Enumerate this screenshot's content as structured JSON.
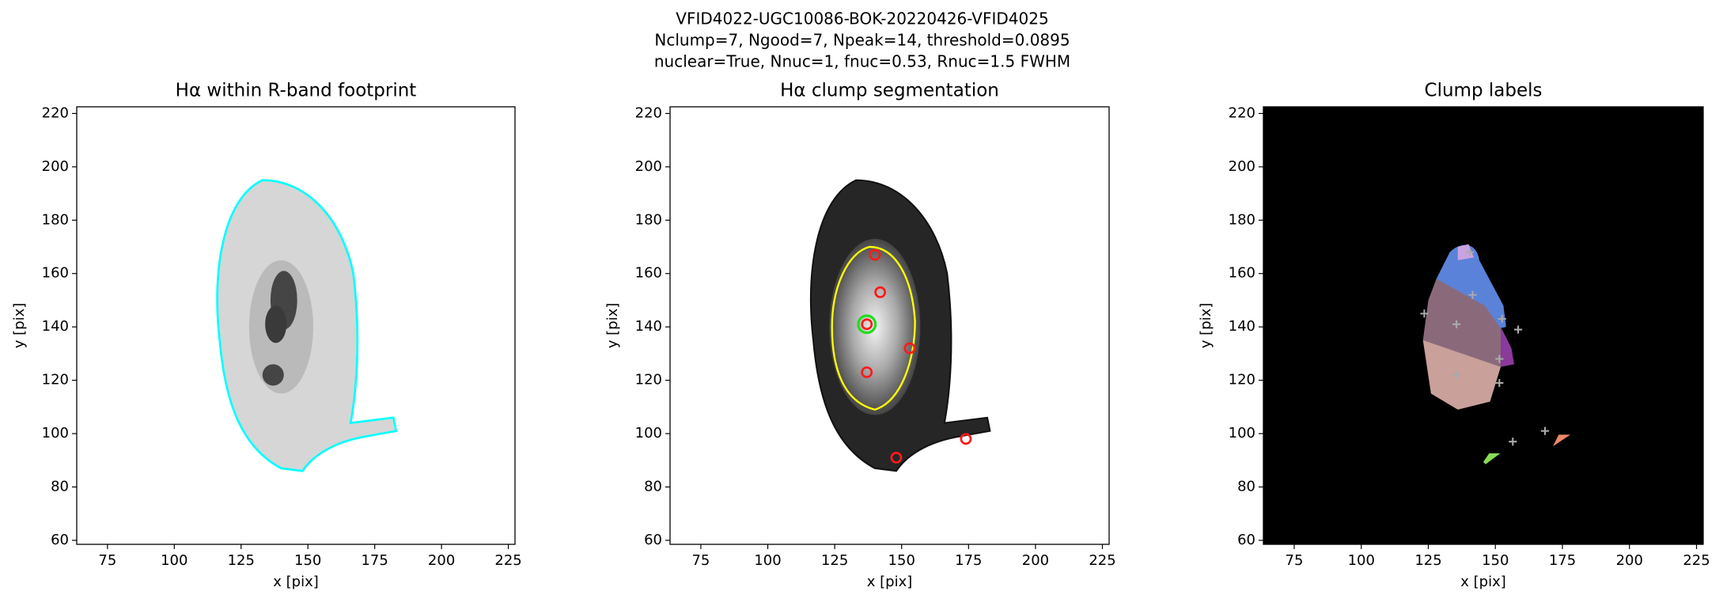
{
  "figure": {
    "title_lines": [
      "VFID4022-UGC10086-BOK-20220426-VFID4025",
      "Nclump=7, Ngood=7, Npeak=14, threshold=0.0895",
      "nuclear=True, Nnuc=1, fnuc=0.53, Rnuc=1.5 FWHM"
    ]
  },
  "chart_data": [
    {
      "type": "image",
      "title": "Hα within R-band footprint",
      "xlabel": "x [pix]",
      "ylabel": "y [pix]",
      "xlim": [
        63.5,
        227.5
      ],
      "ylim": [
        58.5,
        222.5
      ],
      "xticks": [
        75,
        100,
        125,
        150,
        175,
        200,
        225
      ],
      "yticks": [
        60,
        80,
        100,
        120,
        140,
        160,
        180,
        200,
        220
      ]
    },
    {
      "type": "image",
      "title": "Hα clump segmentation",
      "xlabel": "x [pix]",
      "ylabel": "y [pix]",
      "xlim": [
        63.5,
        227.5
      ],
      "ylim": [
        58.5,
        222.5
      ],
      "xticks": [
        75,
        100,
        125,
        150,
        175,
        200,
        225
      ],
      "yticks": [
        60,
        80,
        100,
        120,
        140,
        160,
        180,
        200,
        220
      ]
    },
    {
      "type": "image",
      "title": "Clump labels",
      "xlabel": "x [pix]",
      "ylabel": "y [pix]",
      "xlim": [
        63.5,
        227.5
      ],
      "ylim": [
        58.5,
        222.5
      ],
      "xticks": [
        75,
        100,
        125,
        150,
        175,
        200,
        225
      ],
      "yticks": [
        60,
        80,
        100,
        120,
        140,
        160,
        180,
        200,
        220
      ]
    }
  ]
}
